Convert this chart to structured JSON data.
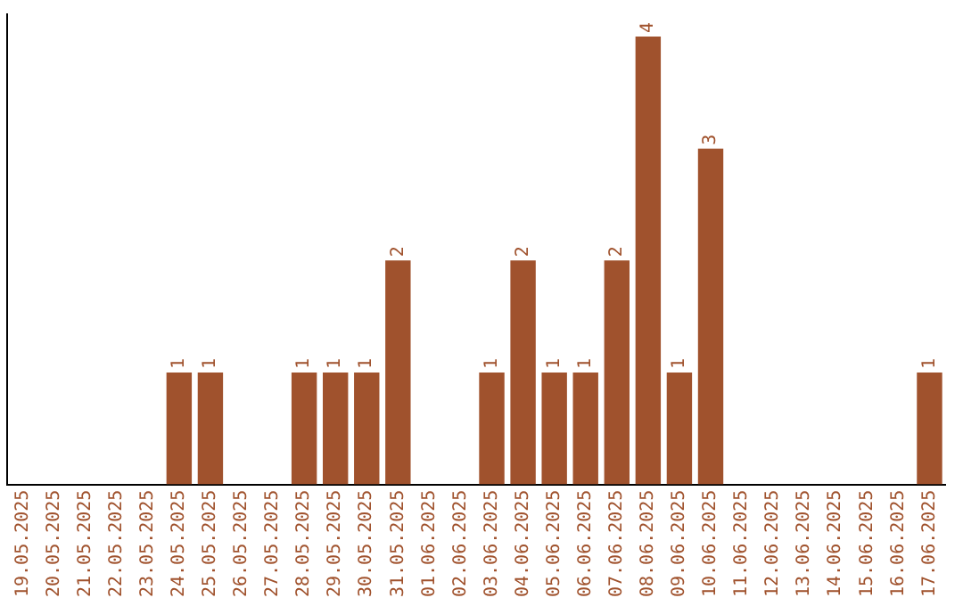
{
  "chart_data": {
    "type": "bar",
    "categories": [
      "19.05.2025",
      "20.05.2025",
      "21.05.2025",
      "22.05.2025",
      "23.05.2025",
      "24.05.2025",
      "25.05.2025",
      "26.05.2025",
      "27.05.2025",
      "28.05.2025",
      "29.05.2025",
      "30.05.2025",
      "31.05.2025",
      "01.06.2025",
      "02.06.2025",
      "03.06.2025",
      "04.06.2025",
      "05.06.2025",
      "06.06.2025",
      "07.06.2025",
      "08.06.2025",
      "09.06.2025",
      "10.06.2025",
      "11.06.2025",
      "12.06.2025",
      "13.06.2025",
      "14.06.2025",
      "15.06.2025",
      "16.06.2025",
      "17.06.2025"
    ],
    "values": [
      0,
      0,
      0,
      0,
      0,
      1,
      1,
      0,
      0,
      1,
      1,
      1,
      2,
      0,
      0,
      1,
      2,
      1,
      1,
      2,
      4,
      1,
      3,
      0,
      0,
      0,
      0,
      0,
      0,
      1
    ],
    "value_labels": [
      null,
      null,
      null,
      null,
      null,
      "1",
      "1",
      null,
      null,
      "1",
      "1",
      "1",
      "2",
      null,
      null,
      "1",
      "2",
      "1",
      "1",
      "2",
      "4",
      "1",
      "3",
      null,
      null,
      null,
      null,
      null,
      null,
      "1"
    ],
    "color": "#a0522d",
    "ylim": [
      0,
      4.2
    ],
    "tick_labels": "x",
    "grid": false,
    "legend": false
  }
}
